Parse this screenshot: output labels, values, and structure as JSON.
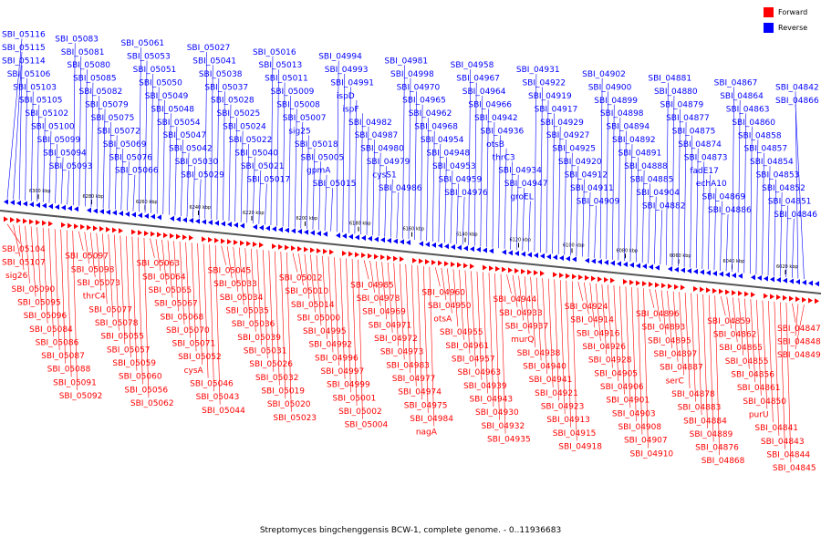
{
  "legend": {
    "forward_label": "Forward",
    "reverse_label": "Reverse",
    "forward_color": "#ff0000",
    "reverse_color": "#0000ff"
  },
  "caption": "Streptomyces bingchenggensis BCW-1, complete genome. - 0..11936683",
  "scale_labels": [
    "6300 kbp",
    "6280 kbp",
    "6260 kbp",
    "6240 kbp",
    "6220 kbp",
    "6200 kbp",
    "6180 kbp",
    "6160 kbp",
    "6140 kbp",
    "6120 kbp",
    "6100 kbp",
    "6080 kbp",
    "6060 kbp",
    "6040 kbp",
    "6020 kbp"
  ],
  "reverse_labels": [
    "SBI_05116",
    "SBI_05115",
    "SBI_05114",
    "SBI_05106",
    "SBI_05103",
    "SBI_05105",
    "SBI_05102",
    "SBI_05100",
    "SBI_05099",
    "SBI_05094",
    "SBI_05093",
    "SBI_05083",
    "SBI_05081",
    "SBI_05080",
    "SBI_05085",
    "SBI_05082",
    "SBI_05079",
    "SBI_05075",
    "SBI_05072",
    "SBI_05069",
    "SBI_05076",
    "SBI_05066",
    "SBI_05061",
    "SBI_05053",
    "SBI_05051",
    "SBI_05050",
    "SBI_05049",
    "SBI_05048",
    "SBI_05054",
    "SBI_05047",
    "SBI_05042",
    "SBI_05030",
    "SBI_05029",
    "SBI_05027",
    "SBI_05041",
    "SBI_05038",
    "SBI_05037",
    "SBI_05028",
    "SBI_05025",
    "SBI_05024",
    "SBI_05022",
    "SBI_05040",
    "SBI_05021",
    "SBI_05017",
    "SBI_05016",
    "SBI_05013",
    "SBI_05011",
    "SBI_05009",
    "SBI_05008",
    "SBI_05007",
    "sig25",
    "SBI_05018",
    "SBI_05005",
    "gpmA",
    "SBI_05015",
    "SBI_04994",
    "SBI_04993",
    "SBI_04991",
    "ispD",
    "ispF",
    "SBI_04982",
    "SBI_04987",
    "SBI_04980",
    "SBI_04979",
    "cysS1",
    "SBI_04986",
    "SBI_04981",
    "SBI_04998",
    "SBI_04970",
    "SBI_04965",
    "SBI_04962",
    "SBI_04968",
    "SBI_04954",
    "SBI_04948",
    "SBI_04953",
    "SBI_04959",
    "SBI_04976",
    "SBI_04958",
    "SBI_04967",
    "SBI_04964",
    "SBI_04966",
    "SBI_04942",
    "SBI_04936",
    "otsB",
    "thrC3",
    "SBI_04934",
    "SBI_04947",
    "groEL",
    "SBI_04931",
    "SBI_04922",
    "SBI_04919",
    "SBI_04917",
    "SBI_04929",
    "SBI_04927",
    "SBI_04925",
    "SBI_04920",
    "SBI_04912",
    "SBI_04911",
    "SBI_04909",
    "SBI_04902",
    "SBI_04900",
    "SBI_04899",
    "SBI_04898",
    "SBI_04894",
    "SBI_04892",
    "SBI_04891",
    "SBI_04888",
    "SBI_04885",
    "SBI_04904",
    "SBI_04882",
    "SBI_04881",
    "SBI_04880",
    "SBI_04879",
    "SBI_04877",
    "SBI_04875",
    "SBI_04874",
    "SBI_04873",
    "fadE17",
    "echA10",
    "SBI_04869",
    "SBI_04886",
    "SBI_04867",
    "SBI_04864",
    "SBI_04863",
    "SBI_04860",
    "SBI_04858",
    "SBI_04857",
    "SBI_04854",
    "SBI_04853",
    "SBI_04852",
    "SBI_04851",
    "SBI_04846",
    "SBI_04842",
    "SBI_04866"
  ],
  "forward_labels": [
    "SBI_05104",
    "SBI_05107",
    "sig26",
    "SBI_05090",
    "SBI_05095",
    "SBI_05096",
    "SBI_05084",
    "SBI_05086",
    "SBI_05087",
    "SBI_05088",
    "SBI_05091",
    "SBI_05092",
    "SBI_05097",
    "SBI_05098",
    "SBI_05073",
    "thrC4",
    "SBI_05077",
    "SBI_05078",
    "SBI_05055",
    "SBI_05057",
    "SBI_05059",
    "SBI_05060",
    "SBI_05056",
    "SBI_05062",
    "SBI_05063",
    "SBI_05064",
    "SBI_05065",
    "SBI_05067",
    "SBI_05068",
    "SBI_05070",
    "SBI_05071",
    "SBI_05052",
    "cysA",
    "SBI_05046",
    "SBI_05043",
    "SBI_05044",
    "SBI_05045",
    "SBI_05033",
    "SBI_05034",
    "SBI_05035",
    "SBI_05036",
    "SBI_05039",
    "SBI_05031",
    "SBI_05026",
    "SBI_05032",
    "SBI_05019",
    "SBI_05020",
    "SBI_05023",
    "SBI_05012",
    "SBI_05010",
    "SBI_05014",
    "SBI_05000",
    "SBI_04995",
    "SBI_04992",
    "SBI_04996",
    "SBI_04997",
    "SBI_04999",
    "SBI_05001",
    "SBI_05002",
    "SBI_05004",
    "SBI_04985",
    "SBI_04978",
    "SBI_04969",
    "SBI_04971",
    "SBI_04972",
    "SBI_04973",
    "SBI_04983",
    "SBI_04977",
    "SBI_04974",
    "SBI_04975",
    "SBI_04984",
    "nagA",
    "SBI_04960",
    "SBI_04950",
    "otsA",
    "SBI_04955",
    "SBI_04961",
    "SBI_04957",
    "SBI_04963",
    "SBI_04939",
    "SBI_04943",
    "SBI_04930",
    "SBI_04932",
    "SBI_04935",
    "SBI_04944",
    "SBI_04933",
    "SBI_04937",
    "murQ",
    "SBI_04938",
    "SBI_04940",
    "SBI_04941",
    "SBI_04921",
    "SBI_04923",
    "SBI_04913",
    "SBI_04915",
    "SBI_04918",
    "SBI_04924",
    "SBI_04914",
    "SBI_04916",
    "SBI_04926",
    "SBI_04928",
    "SBI_04905",
    "SBI_04906",
    "SBI_04901",
    "SBI_04903",
    "SBI_04908",
    "SBI_04907",
    "SBI_04910",
    "SBI_04896",
    "SBI_04893",
    "SBI_04895",
    "SBI_04897",
    "SBI_04887",
    "serC",
    "SBI_04878",
    "SBI_04883",
    "SBI_04884",
    "SBI_04889",
    "SBI_04876",
    "SBI_04868",
    "SBI_04859",
    "SBI_04862",
    "SBI_04865",
    "SBI_04855",
    "SBI_04856",
    "SBI_04861",
    "SBI_04850",
    "purU",
    "SBI_04841",
    "SBI_04843",
    "SBI_04844",
    "SBI_04845",
    "SBI_04847",
    "SBI_04848",
    "SBI_04849"
  ]
}
